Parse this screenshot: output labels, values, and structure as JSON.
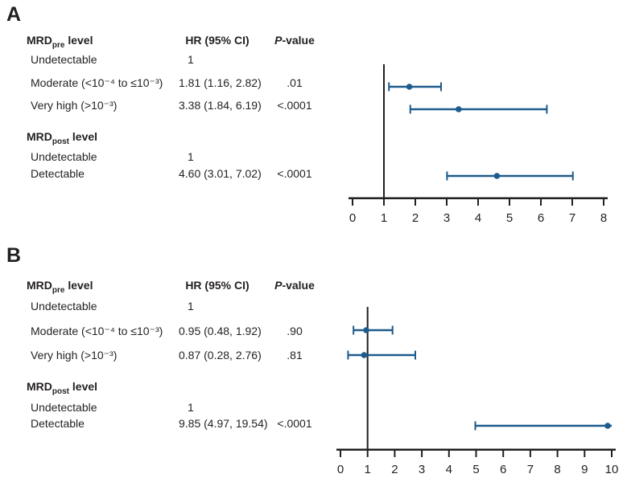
{
  "figure": {
    "panels": [
      {
        "label": "A",
        "columns": {
          "hr": "HR (95% CI)",
          "p_italic": "P",
          "p_rest": "-value"
        },
        "groups": [
          {
            "header": {
              "main": "MRD",
              "sub": "pre",
              "rest": " level"
            },
            "rows": [
              {
                "label": "Undetectable",
                "hr": "1",
                "p": ""
              },
              {
                "label": "Moderate (<10⁻⁴ to ≤10⁻³)",
                "hr": "1.81 (1.16, 2.82)",
                "p": ".01"
              },
              {
                "label": "Very high (>10⁻³)",
                "hr": "3.38 (1.84, 6.19)",
                "p": "<.0001"
              }
            ]
          },
          {
            "header": {
              "main": "MRD",
              "sub": "post",
              "rest": " level"
            },
            "rows": [
              {
                "label": "Undetectable",
                "hr": "1",
                "p": ""
              },
              {
                "label": "Detectable",
                "hr": "4.60 (3.01, 7.02)",
                "p": "<.0001"
              }
            ]
          }
        ]
      },
      {
        "label": "B",
        "columns": {
          "hr": "HR (95% CI)",
          "p_italic": "P",
          "p_rest": "-value"
        },
        "groups": [
          {
            "header": {
              "main": "MRD",
              "sub": "pre",
              "rest": " level"
            },
            "rows": [
              {
                "label": "Undetectable",
                "hr": "1",
                "p": ""
              },
              {
                "label": "Moderate (<10⁻⁴ to ≤10⁻³)",
                "hr": "0.95 (0.48, 1.92)",
                "p": ".90"
              },
              {
                "label": "Very high (>10⁻³)",
                "hr": "0.87 (0.28, 2.76)",
                "p": ".81"
              }
            ]
          },
          {
            "header": {
              "main": "MRD",
              "sub": "post",
              "rest": " level"
            },
            "rows": [
              {
                "label": "Undetectable",
                "hr": "1",
                "p": ""
              },
              {
                "label": "Detectable",
                "hr": "9.85 (4.97, 19.54)",
                "p": "<.0001"
              }
            ]
          }
        ]
      }
    ]
  },
  "chart_data": [
    {
      "type": "scatter",
      "subtype": "forest",
      "panel": "A",
      "title": "",
      "xlabel": "",
      "ylabel": "",
      "points": [
        {
          "label": "Moderate (<10⁻⁴ to ≤10⁻³)",
          "hr": 1.81,
          "ci_low": 1.16,
          "ci_high": 2.82,
          "p": ".01"
        },
        {
          "label": "Very high (>10⁻³)",
          "hr": 3.38,
          "ci_low": 1.84,
          "ci_high": 6.19,
          "p": "<.0001"
        },
        {
          "label": "Detectable",
          "hr": 4.6,
          "ci_low": 3.01,
          "ci_high": 7.02,
          "p": "<.0001"
        }
      ],
      "reference_line": 1,
      "xlim": [
        0,
        8
      ],
      "x_ticks": [
        0,
        1,
        2,
        3,
        4,
        5,
        6,
        7,
        8
      ],
      "grid": false,
      "legend": "none",
      "marker_color": "#1e5b8d",
      "axis_color": "#231f20"
    },
    {
      "type": "scatter",
      "subtype": "forest",
      "panel": "B",
      "title": "",
      "xlabel": "",
      "ylabel": "",
      "points": [
        {
          "label": "Moderate (<10⁻⁴ to ≤10⁻³)",
          "hr": 0.95,
          "ci_low": 0.48,
          "ci_high": 1.92,
          "p": ".90"
        },
        {
          "label": "Very high (>10⁻³)",
          "hr": 0.87,
          "ci_low": 0.28,
          "ci_high": 2.76,
          "p": ".81"
        },
        {
          "label": "Detectable",
          "hr": 9.85,
          "ci_low": 4.97,
          "ci_high": 19.54,
          "p": "<.0001"
        }
      ],
      "reference_line": 1,
      "xlim": [
        0,
        10
      ],
      "x_ticks": [
        0,
        1,
        2,
        3,
        4,
        5,
        6,
        7,
        8,
        9,
        10
      ],
      "grid": false,
      "legend": "none",
      "marker_color": "#1e5b8d",
      "axis_color": "#231f20"
    }
  ]
}
